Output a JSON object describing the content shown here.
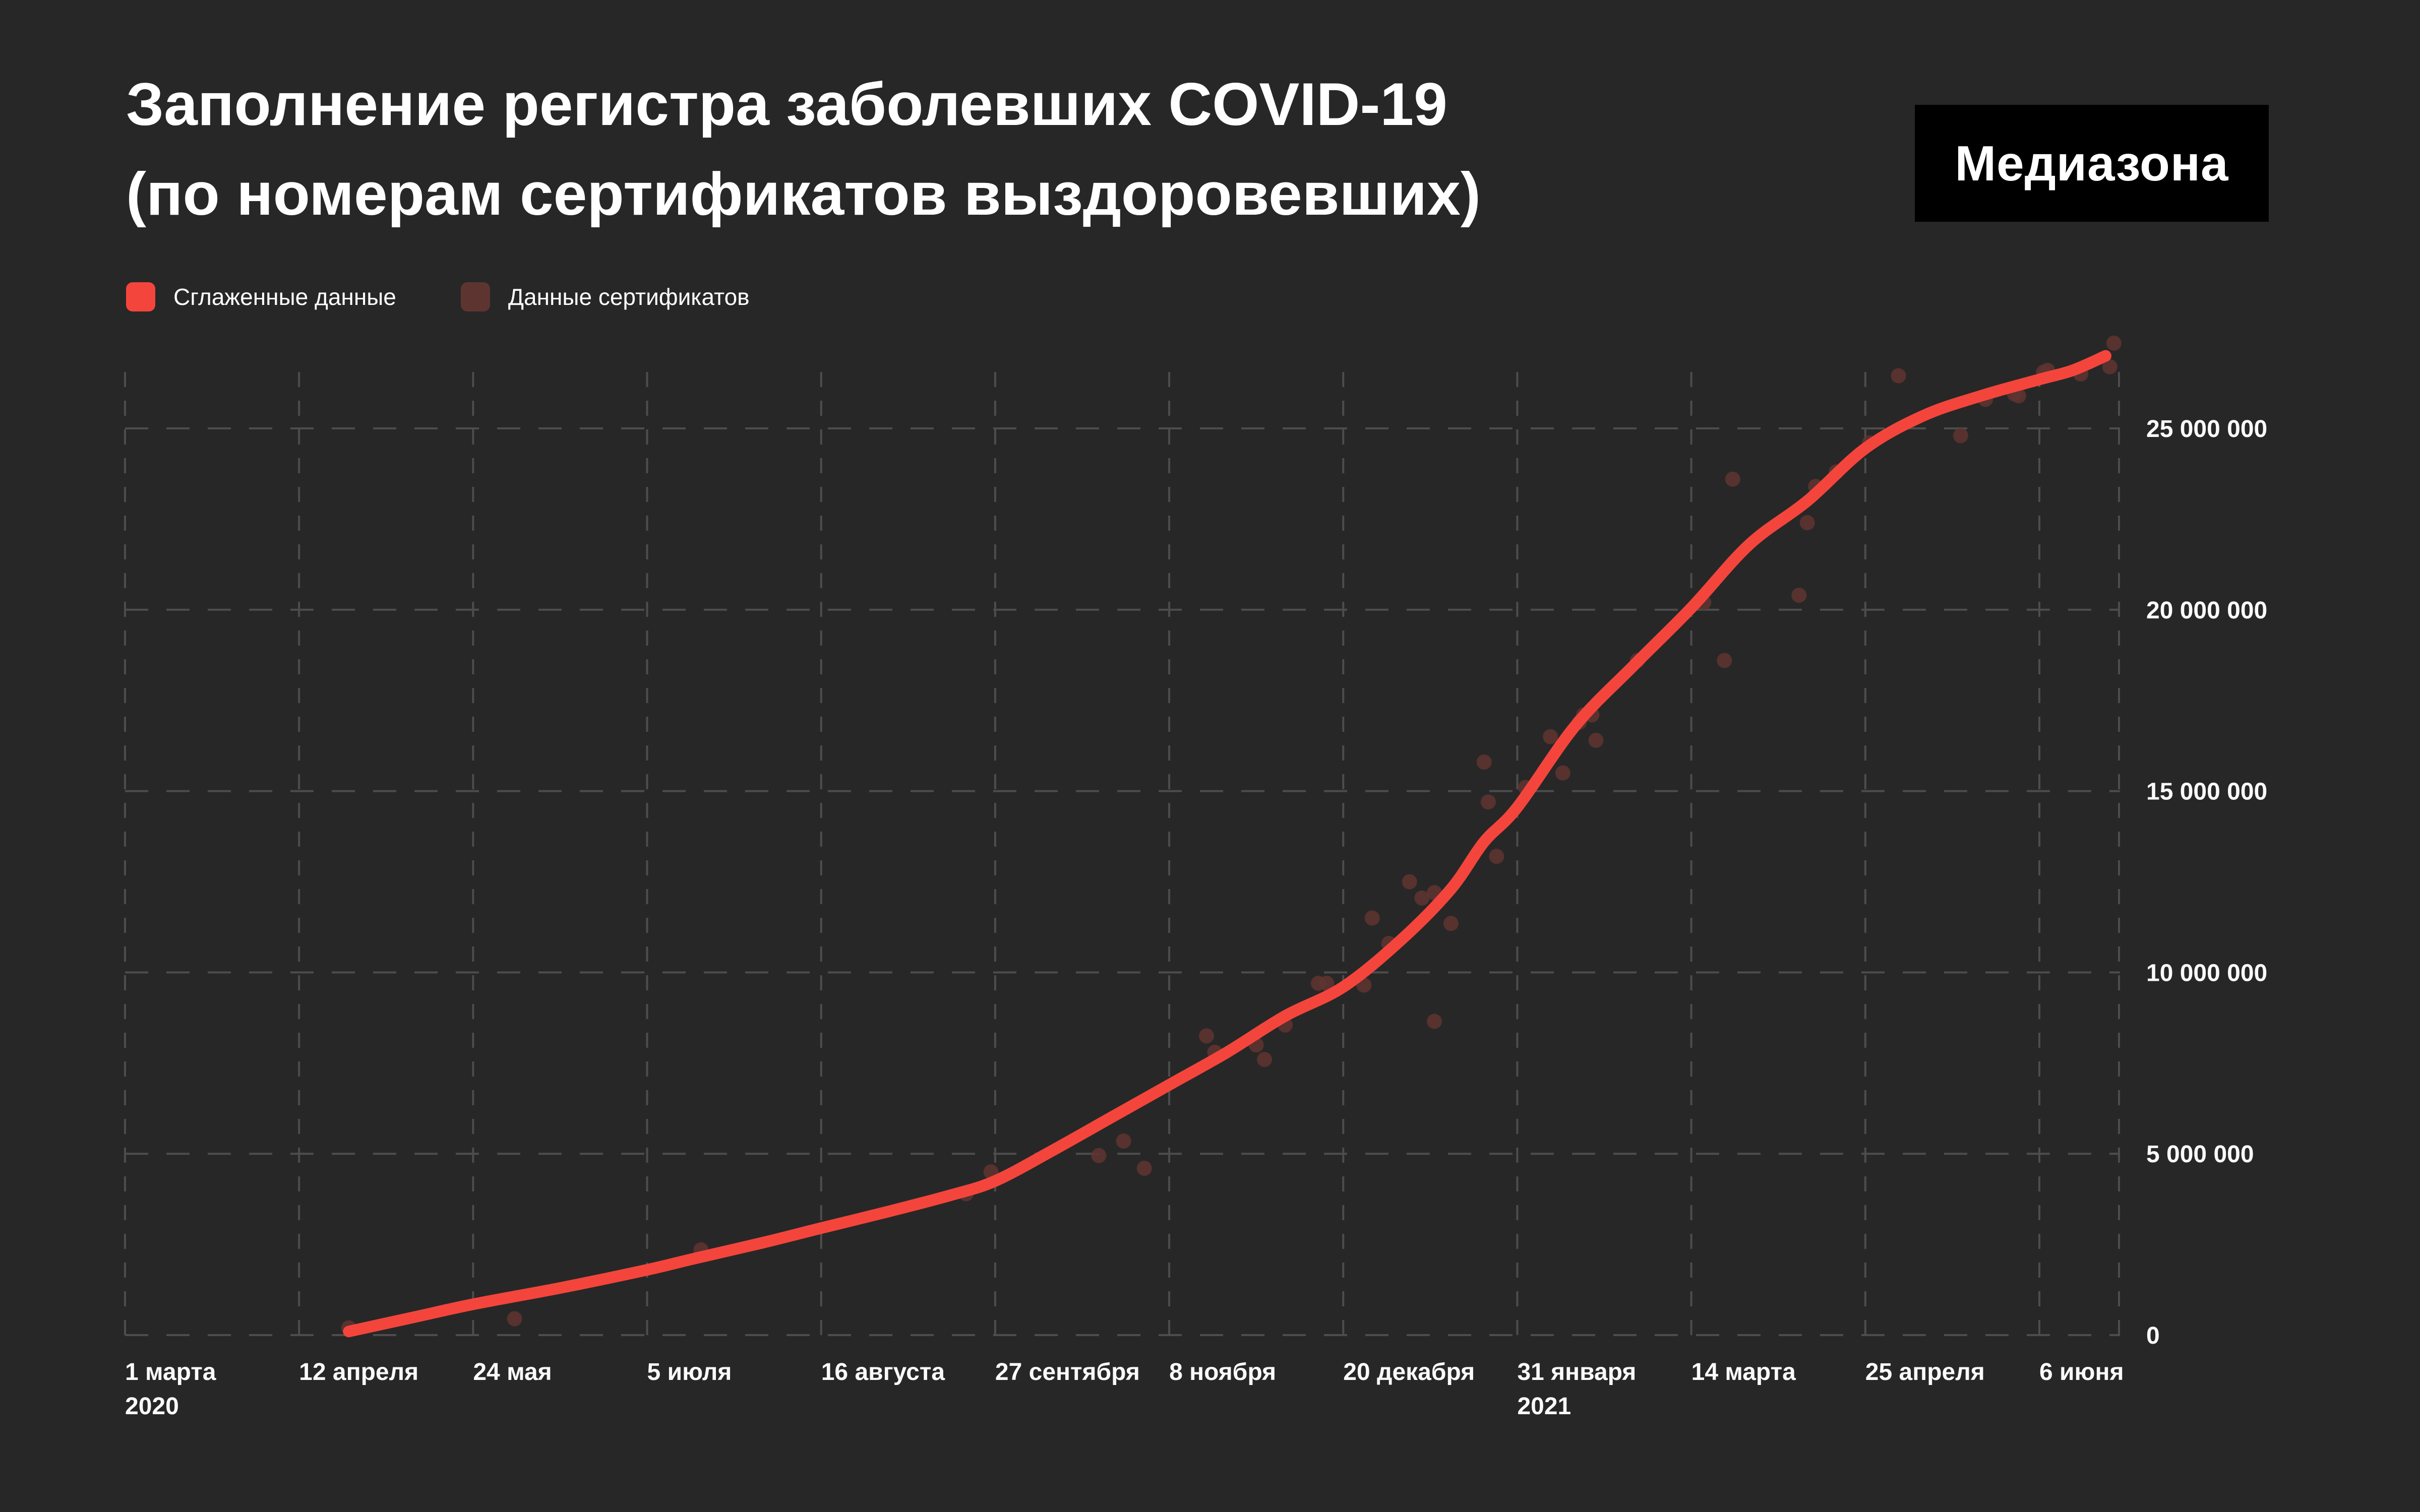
{
  "title": {
    "line1": "Заполнение регистра заболевших COVID-19",
    "line2": "(по номерам сертификатов выздоровевших)"
  },
  "logo": {
    "text": "Медиазона"
  },
  "legend": [
    {
      "label": "Сглаженные данные",
      "color": "#f4453c"
    },
    {
      "label": "Данные сертификатов",
      "color": "#5e3431"
    }
  ],
  "colors": {
    "background": "#272727",
    "grid": "#4d4d4d",
    "line": "#f4453c",
    "scatter": "#5e3431",
    "text": "#ffffff",
    "logo_background": "#000000"
  },
  "chart_data": {
    "type": "line",
    "title": "Заполнение регистра заболевших COVID-19 (по номерам сертификатов выздоровевших)",
    "legend_position": "top-left",
    "grid": "dashed",
    "x_axis": {
      "ticks": [
        {
          "date": "2020-03-01",
          "label": "1 марта",
          "year_label": "2020"
        },
        {
          "date": "2020-04-12",
          "label": "12 апреля"
        },
        {
          "date": "2020-05-24",
          "label": "24 мая"
        },
        {
          "date": "2020-07-05",
          "label": "5 июля"
        },
        {
          "date": "2020-08-16",
          "label": "16 августа"
        },
        {
          "date": "2020-09-27",
          "label": "27 сентября"
        },
        {
          "date": "2020-11-08",
          "label": "8 ноября"
        },
        {
          "date": "2020-12-20",
          "label": "20 декабря"
        },
        {
          "date": "2021-01-31",
          "label": "31 января",
          "year_label": "2021"
        },
        {
          "date": "2021-03-14",
          "label": "14 марта"
        },
        {
          "date": "2021-04-25",
          "label": "25 апреля"
        },
        {
          "date": "2021-06-06",
          "label": "6 июня"
        }
      ]
    },
    "y_axis": {
      "side": "right",
      "range": [
        0,
        27500000
      ],
      "ticks": [
        {
          "value": 0,
          "label": "0"
        },
        {
          "value": 5000000,
          "label": "5 000 000"
        },
        {
          "value": 10000000,
          "label": "10 000 000"
        },
        {
          "value": 15000000,
          "label": "15 000 000"
        },
        {
          "value": 20000000,
          "label": "20 000 000"
        },
        {
          "value": 25000000,
          "label": "25 000 000"
        }
      ]
    },
    "series": [
      {
        "name": "Сглаженные данные",
        "type": "line",
        "color": "#f4453c",
        "points": [
          [
            "2020-04-24",
            100000
          ],
          [
            "2020-05-10",
            500000
          ],
          [
            "2020-05-24",
            850000
          ],
          [
            "2020-06-14",
            1300000
          ],
          [
            "2020-07-05",
            1800000
          ],
          [
            "2020-07-16",
            2100000
          ],
          [
            "2020-08-02",
            2550000
          ],
          [
            "2020-08-16",
            2950000
          ],
          [
            "2020-09-01",
            3400000
          ],
          [
            "2020-09-16",
            3850000
          ],
          [
            "2020-09-27",
            4250000
          ],
          [
            "2020-10-11",
            5100000
          ],
          [
            "2020-10-25",
            6000000
          ],
          [
            "2020-11-08",
            6900000
          ],
          [
            "2020-11-22",
            7800000
          ],
          [
            "2020-12-06",
            8800000
          ],
          [
            "2020-12-20",
            9600000
          ],
          [
            "2021-01-03",
            10900000
          ],
          [
            "2021-01-15",
            12300000
          ],
          [
            "2021-01-23",
            13600000
          ],
          [
            "2021-01-31",
            14550000
          ],
          [
            "2021-02-14",
            16800000
          ],
          [
            "2021-02-28",
            18450000
          ],
          [
            "2021-03-14",
            20050000
          ],
          [
            "2021-03-28",
            21800000
          ],
          [
            "2021-04-11",
            23000000
          ],
          [
            "2021-04-25",
            24450000
          ],
          [
            "2021-05-09",
            25350000
          ],
          [
            "2021-05-23",
            25900000
          ],
          [
            "2021-06-06",
            26350000
          ],
          [
            "2021-06-14",
            26600000
          ],
          [
            "2021-06-22",
            27000000
          ]
        ]
      },
      {
        "name": "Данные сертификатов",
        "type": "scatter",
        "color": "#5e3431",
        "points": [
          [
            "2020-04-24",
            200000
          ],
          [
            "2020-06-03",
            450000
          ],
          [
            "2020-07-18",
            2350000
          ],
          [
            "2020-09-20",
            3900000
          ],
          [
            "2020-09-26",
            4500000
          ],
          [
            "2020-10-22",
            4950000
          ],
          [
            "2020-10-28",
            5350000
          ],
          [
            "2020-11-02",
            4600000
          ],
          [
            "2020-11-17",
            8250000
          ],
          [
            "2020-11-19",
            7800000
          ],
          [
            "2020-11-29",
            8000000
          ],
          [
            "2020-12-01",
            7600000
          ],
          [
            "2020-12-06",
            8550000
          ],
          [
            "2020-12-14",
            9700000
          ],
          [
            "2020-12-16",
            9700000
          ],
          [
            "2020-12-25",
            9650000
          ],
          [
            "2020-12-27",
            11500000
          ],
          [
            "2020-12-31",
            10800000
          ],
          [
            "2021-01-05",
            12500000
          ],
          [
            "2021-01-08",
            12050000
          ],
          [
            "2021-01-11",
            12200000
          ],
          [
            "2021-01-11",
            8650000
          ],
          [
            "2021-01-15",
            11350000
          ],
          [
            "2021-01-23",
            15800000
          ],
          [
            "2021-01-24",
            14700000
          ],
          [
            "2021-01-26",
            13200000
          ],
          [
            "2021-02-02",
            15100000
          ],
          [
            "2021-02-08",
            16500000
          ],
          [
            "2021-02-11",
            15500000
          ],
          [
            "2021-02-15",
            16900000
          ],
          [
            "2021-02-16",
            17100000
          ],
          [
            "2021-02-18",
            17100000
          ],
          [
            "2021-02-19",
            16400000
          ],
          [
            "2021-03-01",
            18600000
          ],
          [
            "2021-03-17",
            20200000
          ],
          [
            "2021-03-22",
            18600000
          ],
          [
            "2021-03-24",
            23600000
          ],
          [
            "2021-04-09",
            20400000
          ],
          [
            "2021-04-11",
            22400000
          ],
          [
            "2021-04-13",
            23400000
          ],
          [
            "2021-04-18",
            23800000
          ],
          [
            "2021-04-26",
            24600000
          ],
          [
            "2021-05-03",
            26450000
          ],
          [
            "2021-05-18",
            24800000
          ],
          [
            "2021-05-24",
            25800000
          ],
          [
            "2021-05-31",
            25950000
          ],
          [
            "2021-06-01",
            25900000
          ],
          [
            "2021-06-07",
            26550000
          ],
          [
            "2021-06-08",
            26600000
          ],
          [
            "2021-06-16",
            26500000
          ],
          [
            "2021-06-23",
            26700000
          ],
          [
            "2021-06-24",
            27350000
          ]
        ]
      }
    ]
  }
}
